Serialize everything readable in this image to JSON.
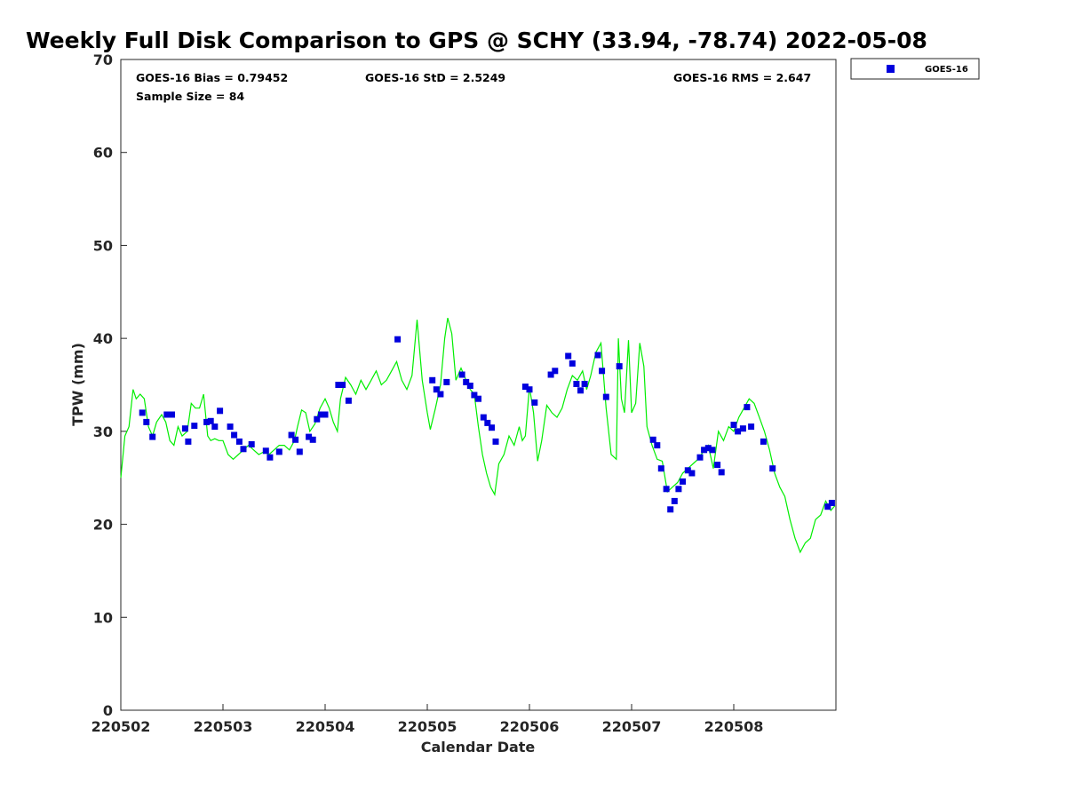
{
  "chart_data": {
    "type": "scatter",
    "title": "Weekly Full Disk Comparison to GPS @ SCHY (33.94, -78.74) 2022-05-08",
    "xlabel": "Calendar Date",
    "ylabel": "TPW (mm)",
    "ylim": [
      0,
      70
    ],
    "xlim": [
      0,
      7
    ],
    "x_unit": "days since 220502 (tick labels printed as yymmdd)",
    "yticks": [
      0,
      10,
      20,
      30,
      40,
      50,
      60,
      70
    ],
    "xticks": [
      {
        "x": 0,
        "label": "220502"
      },
      {
        "x": 1,
        "label": "220503"
      },
      {
        "x": 2,
        "label": "220504"
      },
      {
        "x": 3,
        "label": "220505"
      },
      {
        "x": 4,
        "label": "220506"
      },
      {
        "x": 5,
        "label": "220507"
      },
      {
        "x": 6,
        "label": "220508"
      }
    ],
    "stats": {
      "bias": "GOES-16 Bias = 0.79452",
      "std": "GOES-16 StD = 2.5249",
      "rms": "GOES-16 RMS = 2.647",
      "sample": "Sample Size = 84"
    },
    "legend": {
      "label": "GOES-16",
      "position": "top-right outside plot"
    },
    "grid": false,
    "series": [
      {
        "name": "GOES-16",
        "kind": "scatter",
        "color": "#0000dd",
        "x": [
          0.21,
          0.25,
          0.31,
          0.45,
          0.5,
          0.63,
          0.66,
          0.72,
          0.84,
          0.88,
          0.92,
          0.97,
          1.07,
          1.11,
          1.16,
          1.2,
          1.28,
          1.42,
          1.46,
          1.55,
          1.67,
          1.71,
          1.75,
          1.84,
          1.88,
          1.92,
          1.96,
          2.0,
          2.13,
          2.17,
          2.23,
          2.71,
          3.05,
          3.09,
          3.13,
          3.19,
          3.34,
          3.38,
          3.42,
          3.46,
          3.5,
          3.55,
          3.59,
          3.63,
          3.67,
          3.96,
          4.0,
          4.05,
          4.21,
          4.25,
          4.38,
          4.42,
          4.46,
          4.5,
          4.54,
          4.67,
          4.71,
          4.75,
          4.88,
          5.21,
          5.25,
          5.29,
          5.34,
          5.38,
          5.42,
          5.46,
          5.5,
          5.55,
          5.59,
          5.67,
          5.71,
          5.75,
          5.79,
          5.84,
          5.88,
          6.0,
          6.04,
          6.09,
          6.13,
          6.17,
          6.29,
          6.38,
          6.92,
          6.96
        ],
        "y": [
          32.0,
          31.0,
          29.4,
          31.8,
          31.8,
          30.3,
          28.9,
          30.6,
          31.0,
          31.1,
          30.5,
          32.2,
          30.5,
          29.6,
          28.9,
          28.1,
          28.6,
          27.9,
          27.2,
          27.8,
          29.6,
          29.1,
          27.8,
          29.4,
          29.1,
          31.3,
          31.8,
          31.8,
          35.0,
          35.0,
          33.3,
          39.9,
          35.5,
          34.5,
          34.0,
          35.3,
          36.1,
          35.3,
          34.9,
          33.9,
          33.5,
          31.5,
          30.9,
          30.4,
          28.9,
          34.8,
          34.5,
          33.1,
          36.1,
          36.5,
          38.1,
          37.3,
          35.1,
          34.4,
          35.1,
          38.2,
          36.5,
          33.7,
          37.0,
          29.1,
          28.5,
          26.0,
          23.8,
          21.6,
          22.5,
          23.8,
          24.6,
          25.8,
          25.5,
          27.2,
          28.0,
          28.2,
          28.0,
          26.4,
          25.6,
          30.7,
          30.0,
          30.3,
          32.6,
          30.5,
          28.9,
          26.0,
          21.9,
          22.3
        ]
      },
      {
        "kind": "line",
        "color": "#00ee00",
        "x": [
          0.0,
          0.04,
          0.08,
          0.12,
          0.15,
          0.19,
          0.23,
          0.27,
          0.31,
          0.35,
          0.4,
          0.44,
          0.48,
          0.52,
          0.56,
          0.6,
          0.65,
          0.69,
          0.73,
          0.77,
          0.81,
          0.85,
          0.88,
          0.92,
          0.96,
          1.0,
          1.05,
          1.1,
          1.15,
          1.2,
          1.25,
          1.3,
          1.35,
          1.4,
          1.45,
          1.5,
          1.55,
          1.6,
          1.65,
          1.7,
          1.73,
          1.77,
          1.81,
          1.85,
          1.9,
          1.95,
          2.0,
          2.04,
          2.08,
          2.12,
          2.15,
          2.2,
          2.25,
          2.3,
          2.35,
          2.4,
          2.45,
          2.5,
          2.55,
          2.6,
          2.65,
          2.7,
          2.75,
          2.8,
          2.85,
          2.9,
          2.95,
          3.0,
          3.03,
          3.08,
          3.13,
          3.17,
          3.2,
          3.24,
          3.28,
          3.33,
          3.38,
          3.42,
          3.46,
          3.5,
          3.54,
          3.58,
          3.62,
          3.66,
          3.7,
          3.75,
          3.8,
          3.85,
          3.9,
          3.93,
          3.96,
          4.0,
          4.04,
          4.08,
          4.12,
          4.17,
          4.22,
          4.27,
          4.32,
          4.37,
          4.42,
          4.47,
          4.52,
          4.56,
          4.6,
          4.65,
          4.7,
          4.75,
          4.8,
          4.85,
          4.87,
          4.9,
          4.93,
          4.97,
          5.0,
          5.04,
          5.08,
          5.12,
          5.15,
          5.2,
          5.25,
          5.3,
          5.35,
          5.4,
          5.45,
          5.5,
          5.55,
          5.6,
          5.65,
          5.7,
          5.75,
          5.8,
          5.85,
          5.9,
          5.95,
          6.0,
          6.05,
          6.1,
          6.15,
          6.2,
          6.25,
          6.3,
          6.35,
          6.4,
          6.45,
          6.5,
          6.55,
          6.6,
          6.65,
          6.7,
          6.75,
          6.8,
          6.85,
          6.9,
          6.95,
          6.99
        ],
        "y": [
          25.0,
          29.5,
          30.5,
          34.5,
          33.5,
          34.0,
          33.5,
          30.5,
          29.5,
          31.0,
          31.8,
          31.0,
          29.0,
          28.5,
          30.5,
          29.5,
          30.0,
          33.0,
          32.5,
          32.5,
          34.0,
          29.5,
          29.0,
          29.2,
          29.0,
          29.0,
          27.5,
          27.0,
          27.5,
          28.0,
          28.5,
          28.0,
          27.5,
          27.8,
          27.5,
          28.0,
          28.5,
          28.5,
          28.0,
          29.0,
          30.5,
          32.3,
          32.0,
          30.0,
          30.8,
          32.5,
          33.5,
          32.5,
          31.0,
          30.0,
          33.5,
          35.8,
          35.0,
          34.0,
          35.5,
          34.5,
          35.5,
          36.5,
          35.0,
          35.5,
          36.5,
          37.5,
          35.5,
          34.5,
          36.0,
          42.0,
          35.5,
          32.0,
          30.2,
          32.5,
          35.0,
          40.0,
          42.2,
          40.5,
          35.5,
          36.8,
          35.5,
          34.5,
          34.0,
          30.5,
          27.5,
          25.5,
          24.0,
          23.2,
          26.5,
          27.5,
          29.5,
          28.5,
          30.5,
          29.0,
          29.5,
          34.8,
          32.0,
          26.8,
          29.0,
          32.8,
          32.0,
          31.5,
          32.5,
          34.5,
          36.0,
          35.5,
          36.5,
          34.5,
          36.0,
          38.5,
          39.5,
          32.5,
          27.5,
          27.0,
          40.0,
          33.5,
          32.0,
          39.8,
          32.0,
          33.0,
          39.5,
          37.0,
          30.5,
          28.5,
          27.0,
          26.8,
          23.5,
          24.0,
          24.5,
          25.5,
          26.0,
          26.5,
          27.0,
          27.8,
          28.5,
          26.0,
          30.0,
          29.0,
          30.5,
          30.0,
          31.5,
          32.5,
          33.5,
          33.0,
          31.5,
          30.0,
          28.0,
          25.5,
          24.0,
          23.0,
          20.5,
          18.5,
          17.0,
          18.0,
          18.5,
          20.5,
          21.0,
          22.5,
          21.5,
          22.0
        ]
      }
    ]
  }
}
